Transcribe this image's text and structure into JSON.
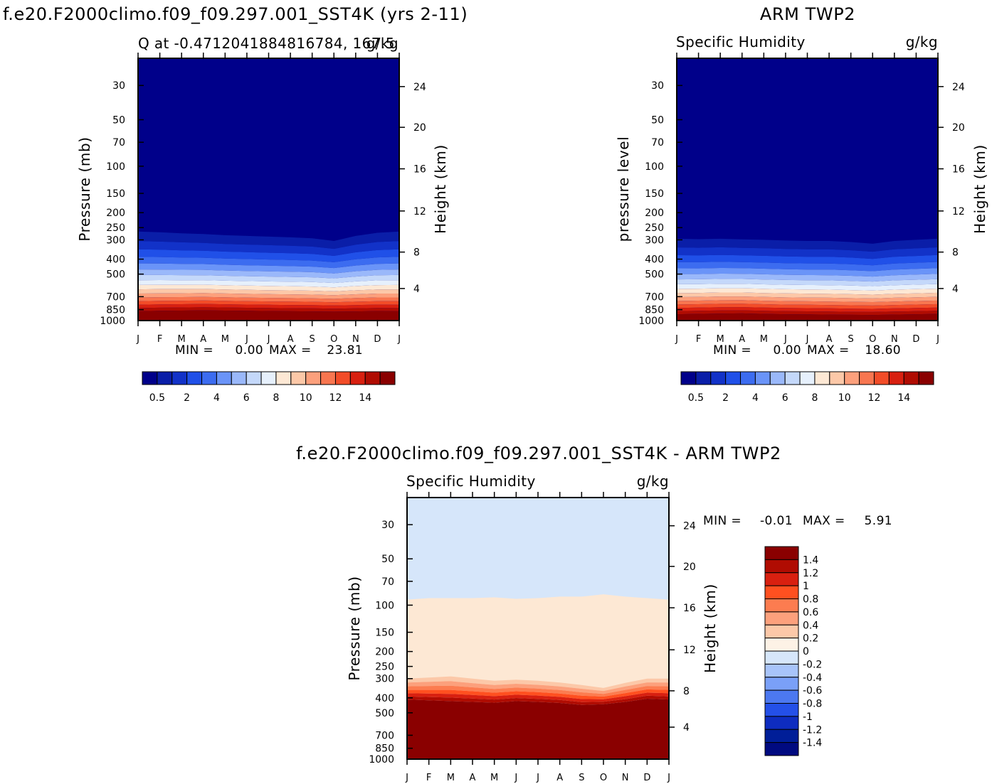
{
  "chart_data": [
    {
      "type": "heatmap",
      "title": "f.e20.F2000climo.f09_f09.297.001_SST4K (yrs 2-11)",
      "subtitle": "Q at -0.4712041884816784, 167.5",
      "units": "g/kg",
      "ylabel": "Pressure (mb)",
      "ylabel_right": "Height (km)",
      "x_ticks": [
        "J",
        "F",
        "M",
        "A",
        "M",
        "J",
        "J",
        "A",
        "S",
        "O",
        "N",
        "D",
        "J"
      ],
      "y_ticks": [
        "30",
        "50",
        "70",
        "100",
        "150",
        "200",
        "250",
        "300",
        "400",
        "500",
        "700",
        "850",
        "1000"
      ],
      "y_ticks_right": [
        "24",
        "20",
        "16",
        "12",
        "8",
        "4"
      ],
      "stats": {
        "min_label": "MIN =",
        "min": "0.00",
        "max_label": "MAX =",
        "max": "23.81"
      },
      "contour_levels_pressure_mb": {
        "0.5": [
          265,
          268,
          272,
          275,
          280,
          283,
          286,
          289,
          293,
          305,
          283,
          270,
          265
        ],
        "14": [
          870,
          865,
          862,
          858,
          862,
          865,
          868,
          870,
          872,
          875,
          872,
          868,
          870
        ]
      },
      "colorbar": {
        "tick_labels": [
          "0.5",
          "2",
          "4",
          "6",
          "8",
          "10",
          "12",
          "14"
        ],
        "colors": [
          "#00008a",
          "#0a1ea8",
          "#1232c8",
          "#2050e8",
          "#3c6cf0",
          "#6a94f8",
          "#9ab8fa",
          "#c4d8fa",
          "#e6f0fc",
          "#fde8d4",
          "#fcc8a8",
          "#fca07c",
          "#f87650",
          "#f24c28",
          "#d82010",
          "#b00c02",
          "#8a0000"
        ]
      },
      "ylim_mb": [
        20,
        1000
      ],
      "log_pressure_axis": true
    },
    {
      "type": "heatmap",
      "title": "ARM TWP2",
      "subtitle": "Specific Humidity",
      "units": "g/kg",
      "ylabel": "pressure level",
      "ylabel_right": "Height (km)",
      "x_ticks": [
        "J",
        "F",
        "M",
        "A",
        "M",
        "J",
        "J",
        "A",
        "S",
        "O",
        "N",
        "D",
        "J"
      ],
      "y_ticks": [
        "30",
        "50",
        "70",
        "100",
        "150",
        "200",
        "250",
        "300",
        "400",
        "500",
        "700",
        "850",
        "1000"
      ],
      "y_ticks_right": [
        "24",
        "20",
        "16",
        "12",
        "8",
        "4"
      ],
      "stats": {
        "min_label": "MIN =",
        "min": "0.00",
        "max_label": "MAX =",
        "max": "18.60"
      },
      "contour_levels_pressure_mb": {
        "0.5": [
          295,
          297,
          295,
          298,
          300,
          303,
          305,
          305,
          310,
          318,
          305,
          300,
          295
        ],
        "14": [
          910,
          905,
          900,
          898,
          905,
          910,
          912,
          915,
          918,
          920,
          915,
          910,
          905
        ]
      },
      "colorbar": {
        "tick_labels": [
          "0.5",
          "2",
          "4",
          "6",
          "8",
          "10",
          "12",
          "14"
        ],
        "colors": [
          "#00008a",
          "#0a1ea8",
          "#1232c8",
          "#2050e8",
          "#3c6cf0",
          "#6a94f8",
          "#9ab8fa",
          "#c4d8fa",
          "#e6f0fc",
          "#fde8d4",
          "#fcc8a8",
          "#fca07c",
          "#f87650",
          "#f24c28",
          "#d82010",
          "#b00c02",
          "#8a0000"
        ]
      },
      "ylim_mb": [
        20,
        1000
      ],
      "log_pressure_axis": true
    },
    {
      "type": "heatmap",
      "title": "f.e20.F2000climo.f09_f09.297.001_SST4K - ARM TWP2",
      "subtitle": "Specific Humidity",
      "units": "g/kg",
      "ylabel": "Pressure (mb)",
      "ylabel_right": "Height (km)",
      "x_ticks": [
        "J",
        "F",
        "M",
        "A",
        "M",
        "J",
        "J",
        "A",
        "S",
        "O",
        "N",
        "D",
        "J"
      ],
      "y_ticks": [
        "30",
        "50",
        "70",
        "100",
        "150",
        "200",
        "250",
        "300",
        "400",
        "500",
        "700",
        "850",
        "1000"
      ],
      "y_ticks_right": [
        "24",
        "20",
        "16",
        "12",
        "8",
        "4"
      ],
      "stats": {
        "min_label": "MIN =",
        "min": "-0.01",
        "max_label": "MAX =",
        "max": "5.91"
      },
      "regions": [
        {
          "range_g_per_kg": "-0.2 to 0",
          "color": "#d6e6fa",
          "pressure_mb": "top to ~90"
        },
        {
          "range_g_per_kg": "0 to 0.2",
          "color": "#fde8d4",
          "pressure_mb": "~90 to ~300"
        },
        {
          "range_g_per_kg": ">= 1.4",
          "color": "#8a0000",
          "pressure_mb": "~410 to 1000"
        }
      ],
      "boundary_0_pressure_mb": [
        92,
        90,
        90,
        90,
        89,
        91,
        90,
        88,
        88,
        85,
        88,
        90,
        92
      ],
      "boundary_1_4_pressure_mb": [
        410,
        415,
        420,
        425,
        430,
        420,
        425,
        432,
        445,
        440,
        425,
        405,
        410
      ],
      "colorbar": {
        "tick_labels": [
          "1.4",
          "1.2",
          "1",
          "0.8",
          "0.6",
          "0.4",
          "0.2",
          "0",
          "-0.2",
          "-0.4",
          "-0.6",
          "-0.8",
          "-1",
          "-1.2",
          "-1.4"
        ],
        "colors": [
          "#8a0000",
          "#b00c02",
          "#d82010",
          "#ff5020",
          "#fc7c50",
          "#fca07c",
          "#fcc8a8",
          "#fdf2e6",
          "#d6e6fa",
          "#a8c4fa",
          "#7aa0f8",
          "#4c78f0",
          "#2450e8",
          "#0e2cc0",
          "#001e98",
          "#000a80"
        ]
      },
      "ylim_mb": [
        20,
        1000
      ],
      "log_pressure_axis": true
    }
  ]
}
